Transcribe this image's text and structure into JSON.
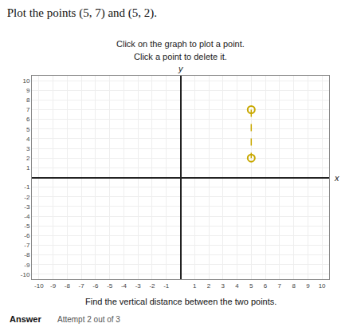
{
  "chart_data": {
    "type": "scatter",
    "title": "Plot the points (5, 7) and (5, 2).",
    "subtitle": [
      "Click on the graph to plot a point.",
      "Click a point to delete it."
    ],
    "annotations": [
      "Find the vertical distance between the two points.",
      "Answer",
      "Attempt 2 out of 3"
    ],
    "xlabel": "x",
    "ylabel": "y",
    "x": [
      5,
      5
    ],
    "values": [
      7,
      2
    ],
    "color": "#c8a800",
    "marker": "circle-open",
    "line_style": "dashed",
    "xlim": [
      -10.5,
      10.5
    ],
    "ylim": [
      -10.5,
      10.5
    ],
    "xticks": [
      -10,
      -9,
      -8,
      -7,
      -6,
      -5,
      -4,
      -3,
      -2,
      -1,
      1,
      2,
      3,
      4,
      5,
      6,
      7,
      8,
      9,
      10
    ],
    "yticks": [
      -10,
      -9,
      -8,
      -7,
      -6,
      -5,
      -4,
      -3,
      -2,
      -1,
      1,
      2,
      3,
      4,
      5,
      6,
      7,
      8,
      9,
      10
    ],
    "grid": true
  }
}
